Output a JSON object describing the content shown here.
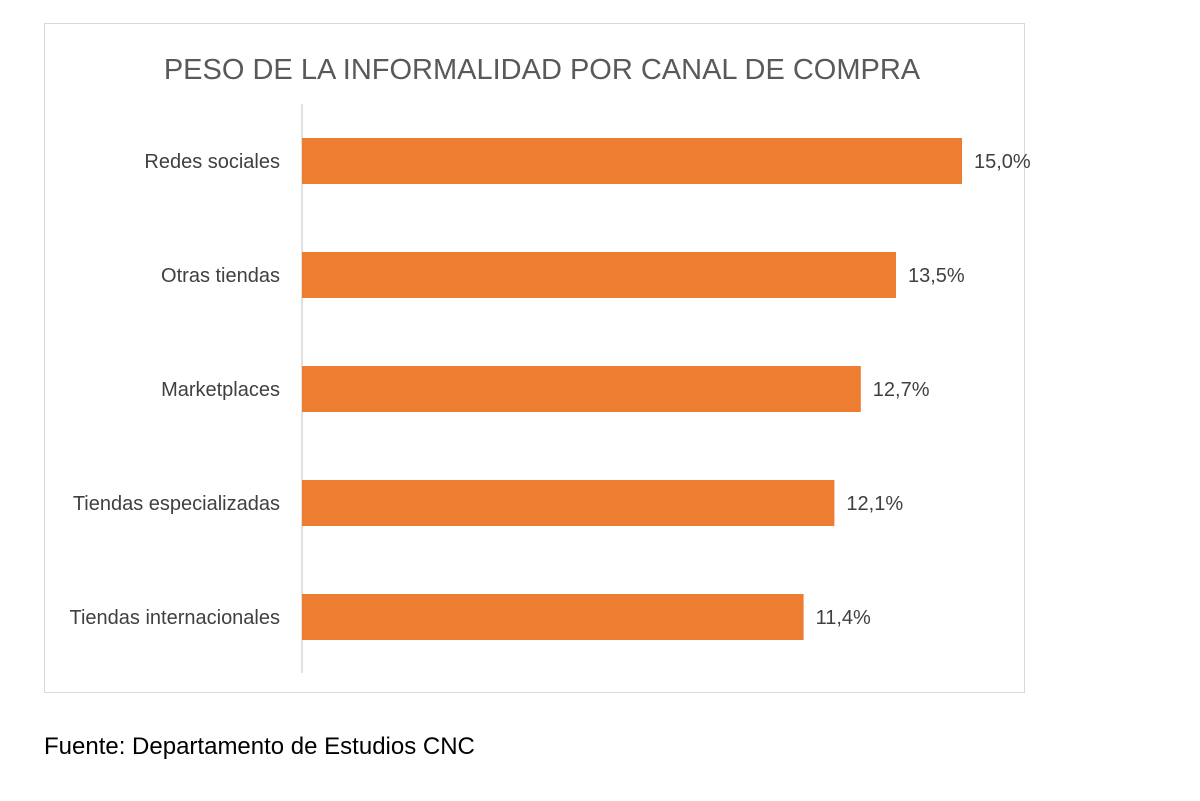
{
  "chart_data": {
    "type": "bar",
    "orientation": "horizontal",
    "title": "PESO DE LA INFORMALIDAD POR CANAL DE COMPRA",
    "categories": [
      "Redes sociales",
      "Otras tiendas",
      "Marketplaces",
      "Tiendas especializadas",
      "Tiendas internacionales"
    ],
    "values": [
      15.0,
      13.5,
      12.7,
      12.1,
      11.4
    ],
    "data_labels": [
      "15,0%",
      "13,5%",
      "12,7%",
      "12,1%",
      "11,4%"
    ],
    "unit": "%",
    "xlim": [
      0,
      15.0
    ],
    "bar_color": "#ED7D31",
    "grid": false,
    "legend": "none"
  },
  "source": "Fuente: Departamento de Estudios CNC"
}
